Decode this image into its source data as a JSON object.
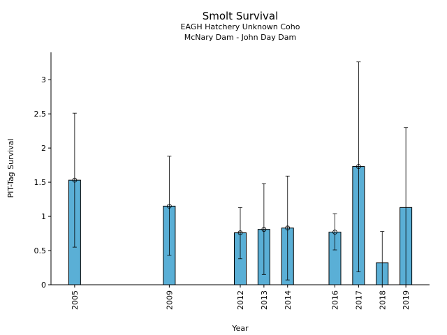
{
  "chart_data": {
    "type": "bar",
    "title": "Smolt Survival",
    "subtitle_lines": [
      "EAGH Hatchery Unknown Coho",
      "McNary Dam - John Day Dam"
    ],
    "xlabel": "Year",
    "ylabel": "PIT-Tag Survival",
    "x_range": [
      2004.0,
      2020.0
    ],
    "ylim": [
      0,
      3.4
    ],
    "yticks": [
      0,
      0.5,
      1,
      1.5,
      2,
      2.5,
      3
    ],
    "ytick_labels": [
      "0",
      "0.5",
      "1",
      "1.5",
      "2",
      "2.5",
      "3"
    ],
    "bar_color": "#5aafd6",
    "series": [
      {
        "name": "PIT-Tag Survival",
        "points": [
          {
            "year": 2005,
            "label": "2005",
            "value": 1.53,
            "lower": 0.55,
            "upper": 2.51
          },
          {
            "year": 2009,
            "label": "2009",
            "value": 1.15,
            "lower": 0.43,
            "upper": 1.88
          },
          {
            "year": 2012,
            "label": "2012",
            "value": 0.76,
            "lower": 0.38,
            "upper": 1.13
          },
          {
            "year": 2013,
            "label": "2013",
            "value": 0.81,
            "lower": 0.15,
            "upper": 1.48
          },
          {
            "year": 2014,
            "label": "2014",
            "value": 0.83,
            "lower": 0.07,
            "upper": 1.59
          },
          {
            "year": 2016,
            "label": "2016",
            "value": 0.77,
            "lower": 0.51,
            "upper": 1.04
          },
          {
            "year": 2017,
            "label": "2017",
            "value": 1.73,
            "lower": 0.19,
            "upper": 3.26
          },
          {
            "year": 2018,
            "label": "2018",
            "value": 0.32,
            "lower": null,
            "upper": 0.78
          },
          {
            "year": 2019,
            "label": "2019",
            "value": 1.13,
            "lower": null,
            "upper": 2.3
          }
        ]
      }
    ]
  }
}
